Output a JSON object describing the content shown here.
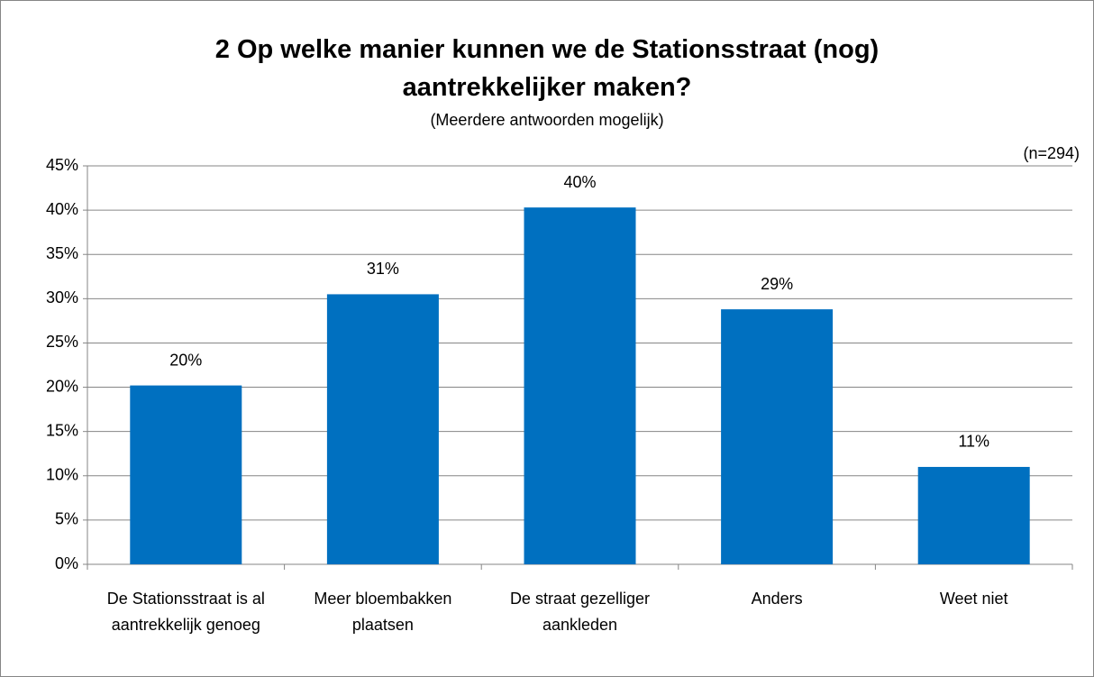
{
  "chart_data": {
    "type": "bar",
    "title": "2 Op welke manier kunnen we de Stationsstraat (nog) aantrekkelijker maken?",
    "subtitle": "(Meerdere antwoorden mogelijk)",
    "annotation": "(n=294)",
    "categories": [
      "De Stationsstraat is al aantrekkelijk genoeg",
      "Meer bloembakken plaatsen",
      "De straat gezelliger aankleden",
      "Anders",
      "Weet niet"
    ],
    "values": [
      20.2,
      30.5,
      40.3,
      28.8,
      11.0
    ],
    "value_labels": [
      "20%",
      "31%",
      "40%",
      "29%",
      "11%"
    ],
    "color": "#0070c0",
    "ylim": [
      0,
      45
    ],
    "yticks": [
      {
        "value": 0,
        "label": "0%"
      },
      {
        "value": 5,
        "label": "5%"
      },
      {
        "value": 10,
        "label": "10%"
      },
      {
        "value": 15,
        "label": "15%"
      },
      {
        "value": 20,
        "label": "20%"
      },
      {
        "value": 25,
        "label": "25%"
      },
      {
        "value": 30,
        "label": "30%"
      },
      {
        "value": 35,
        "label": "35%"
      },
      {
        "value": 40,
        "label": "40%"
      },
      {
        "value": 45,
        "label": "45%"
      }
    ],
    "grid": true
  }
}
